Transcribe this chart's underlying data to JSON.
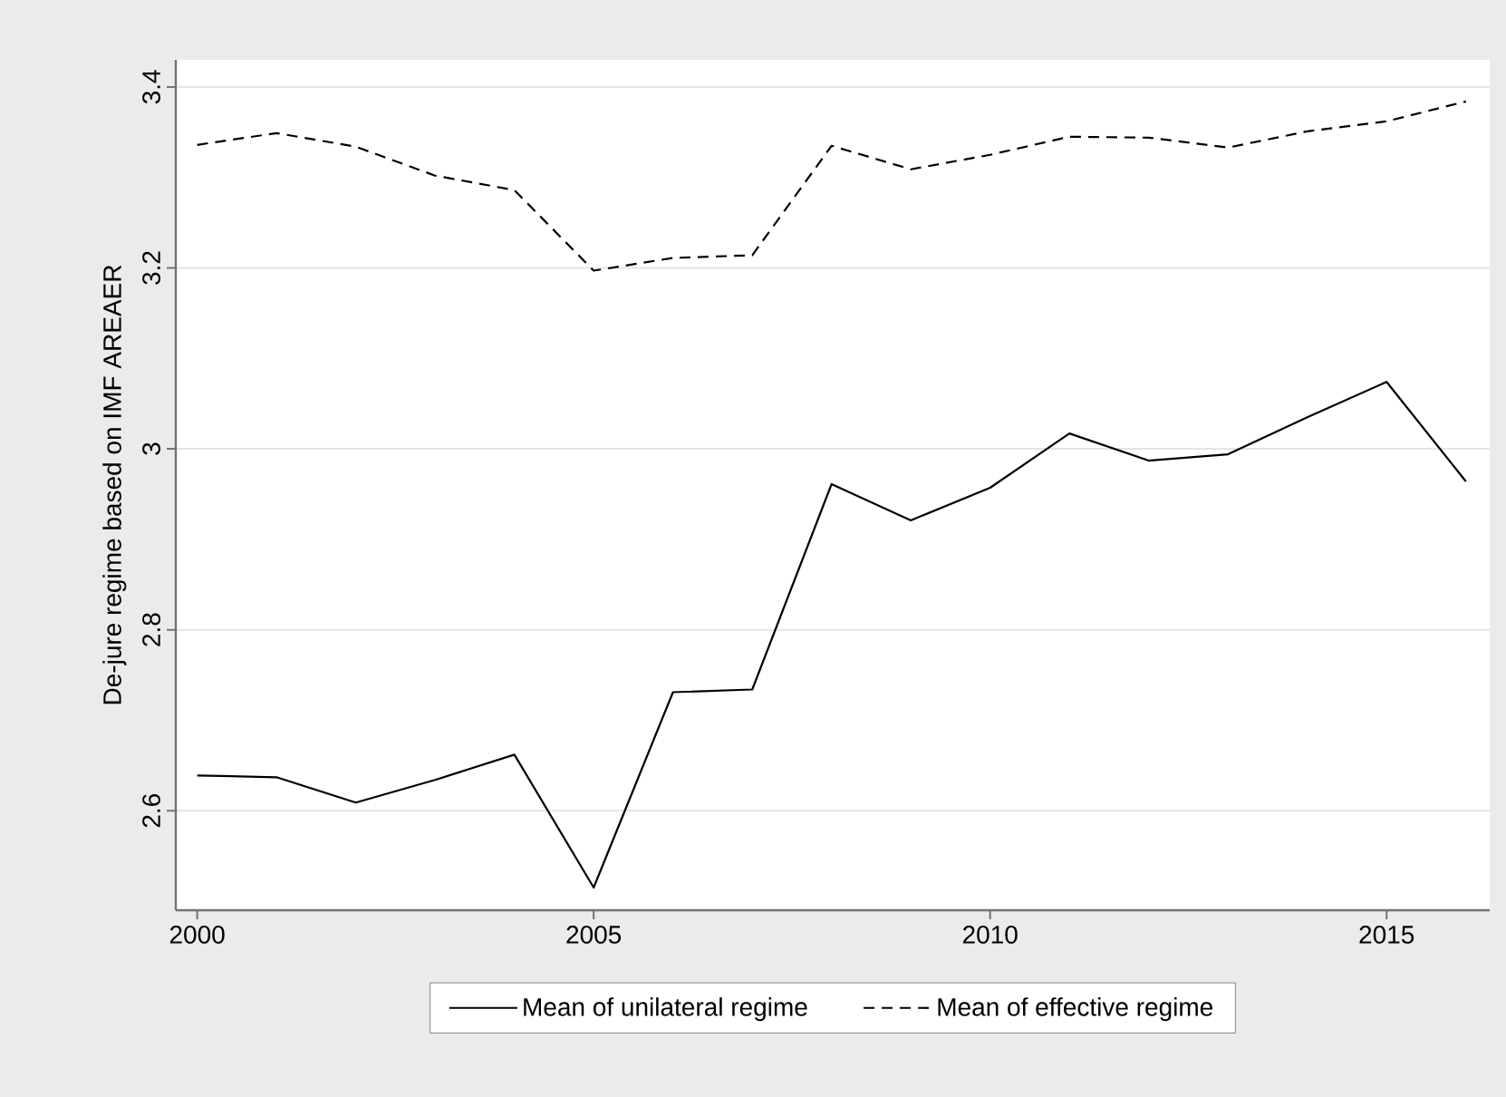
{
  "chart_data": {
    "type": "line",
    "ylabel": "De-jure regime based on IMF AREAER",
    "x": [
      2000,
      2001,
      2002,
      2003,
      2004,
      2005,
      2006,
      2007,
      2008,
      2009,
      2010,
      2011,
      2012,
      2013,
      2014,
      2015,
      2016
    ],
    "series": [
      {
        "name": "Mean of unilateral regime",
        "color": "#000000",
        "line_style": "solid",
        "values": [
          2.639,
          2.637,
          2.609,
          2.634,
          2.662,
          2.515,
          2.731,
          2.734,
          2.961,
          2.921,
          2.957,
          3.017,
          2.987,
          2.994,
          3.035,
          3.074,
          2.964
        ]
      },
      {
        "name": "Mean of effective regime",
        "color": "#000000",
        "line_style": "dashed",
        "values": [
          3.336,
          3.349,
          3.334,
          3.302,
          3.286,
          3.197,
          3.211,
          3.214,
          3.335,
          3.309,
          3.325,
          3.345,
          3.344,
          3.333,
          3.351,
          3.362,
          3.384
        ]
      }
    ],
    "xlim": [
      1999.73,
      2016.3
    ],
    "xticks": [
      2000,
      2005,
      2010,
      2015
    ],
    "ylim": [
      2.49,
      3.43
    ],
    "yticks": [
      2.6,
      2.8,
      3,
      3.2,
      3.4
    ],
    "grid": "y",
    "legend": "bottom"
  }
}
